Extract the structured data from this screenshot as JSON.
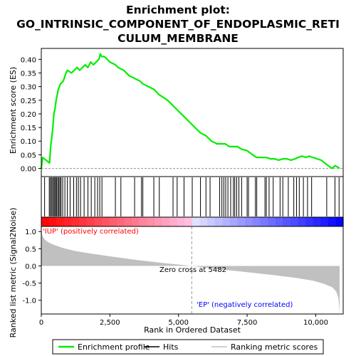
{
  "chart_data": {
    "type": "line",
    "title": "Enrichment plot:\nGO_INTRINSIC_COMPONENT_OF_ENDOPLASMIC_RETI\nCULUM_MEMBRANE",
    "title_lines": [
      "Enrichment plot:",
      "GO_INTRINSIC_COMPONENT_OF_ENDOPLASMIC_RETI",
      "CULUM_MEMBRANE"
    ],
    "xlabel": "Rank in Ordered Dataset",
    "xlim": [
      0,
      11000
    ],
    "x_ticks": [
      0,
      2500,
      5000,
      7500,
      10000
    ],
    "x_tick_labels": [
      "0",
      "2,500",
      "5,000",
      "7,500",
      "10,000"
    ],
    "es_panel": {
      "ylabel": "Enrichment score (ES)",
      "ylim": [
        -0.03,
        0.44
      ],
      "y_ticks": [
        0.0,
        0.05,
        0.1,
        0.15,
        0.2,
        0.25,
        0.3,
        0.35,
        0.4
      ],
      "y_tick_labels": [
        "0.00",
        "0.05",
        "0.10",
        "0.15",
        "0.20",
        "0.25",
        "0.30",
        "0.35",
        "0.40"
      ],
      "line_color": "#00ee00",
      "series": [
        {
          "name": "Enrichment profile",
          "x": [
            0,
            50,
            300,
            340,
            380,
            420,
            460,
            500,
            540,
            580,
            620,
            660,
            700,
            800,
            900,
            950,
            1100,
            1200,
            1300,
            1400,
            1500,
            1600,
            1700,
            1800,
            1900,
            2000,
            2100,
            2150,
            2200,
            2300,
            2500,
            2700,
            2800,
            3000,
            3200,
            3400,
            3600,
            3700,
            3900,
            4100,
            4300,
            4600,
            4800,
            5000,
            5200,
            5400,
            5600,
            5800,
            6000,
            6200,
            6400,
            6550,
            6700,
            6850,
            7000,
            7150,
            7300,
            7500,
            7700,
            7850,
            8000,
            8200,
            8350,
            8500,
            8650,
            8800,
            8950,
            9100,
            9250,
            9350,
            9500,
            9650,
            9750,
            9900,
            10050,
            10200,
            10450,
            10600,
            10700,
            10800,
            10870
          ],
          "y": [
            0.0,
            0.04,
            0.02,
            0.08,
            0.11,
            0.15,
            0.2,
            0.22,
            0.25,
            0.27,
            0.29,
            0.3,
            0.31,
            0.32,
            0.35,
            0.36,
            0.35,
            0.36,
            0.37,
            0.36,
            0.37,
            0.38,
            0.37,
            0.39,
            0.38,
            0.39,
            0.4,
            0.42,
            0.41,
            0.41,
            0.39,
            0.38,
            0.37,
            0.36,
            0.34,
            0.33,
            0.32,
            0.31,
            0.3,
            0.29,
            0.27,
            0.25,
            0.23,
            0.21,
            0.19,
            0.17,
            0.15,
            0.13,
            0.12,
            0.1,
            0.09,
            0.09,
            0.09,
            0.08,
            0.08,
            0.08,
            0.07,
            0.065,
            0.05,
            0.04,
            0.04,
            0.04,
            0.035,
            0.035,
            0.03,
            0.035,
            0.035,
            0.03,
            0.035,
            0.04,
            0.045,
            0.04,
            0.045,
            0.04,
            0.035,
            0.03,
            0.01,
            0.0,
            0.01,
            0.005,
            0.0
          ]
        }
      ]
    },
    "hits_panel": {
      "hit_ranks": [
        120,
        290,
        330,
        370,
        410,
        450,
        490,
        520,
        560,
        600,
        640,
        680,
        720,
        780,
        860,
        950,
        1050,
        1180,
        1280,
        1350,
        1430,
        1560,
        1700,
        1820,
        1950,
        2050,
        2130,
        2210,
        2700,
        2900,
        3400,
        3650,
        3700,
        4100,
        4300,
        4800,
        4950,
        5200,
        5500,
        5800,
        6000,
        6150,
        6500,
        6580,
        6650,
        6720,
        6800,
        6900,
        7000,
        7050,
        7120,
        7200,
        7300,
        7500,
        7550,
        7800,
        7850,
        8150,
        8200,
        8300,
        8450,
        8700,
        8800,
        9000,
        9200,
        9300,
        9400,
        9550,
        9700,
        9850,
        10400,
        10700,
        10850
      ]
    },
    "ranking_panel": {
      "ylabel": "Ranked list metric (Signal2Noise)",
      "ylim": [
        -1.4,
        1.15
      ],
      "y_ticks": [
        -1.0,
        -0.5,
        0.0,
        0.5,
        1.0
      ],
      "y_tick_labels": [
        "-1.0",
        "-0.5",
        "0.0",
        "0.5",
        "1.0"
      ],
      "fill_color": "#c0c0c0",
      "x": [
        0,
        50,
        150,
        300,
        500,
        800,
        1200,
        1800,
        2500,
        3500,
        4500,
        5482,
        6500,
        7500,
        8500,
        9300,
        9900,
        10300,
        10600,
        10750,
        10830,
        10870
      ],
      "y": [
        1.05,
        0.85,
        0.75,
        0.67,
        0.6,
        0.52,
        0.44,
        0.36,
        0.28,
        0.17,
        0.08,
        0.0,
        -0.1,
        -0.18,
        -0.27,
        -0.35,
        -0.43,
        -0.52,
        -0.62,
        -0.75,
        -0.95,
        -1.35
      ],
      "zero_cross_label": "Zero cross at 5482",
      "zero_cross_rank": 5482,
      "pos_label": "'IUP' (positively correlated)",
      "neg_label": "'EP' (negatively correlated)",
      "pos_label_color": "#ff0000",
      "neg_label_color": "#0000ff"
    },
    "legend": {
      "placement": "bottom",
      "entries": [
        {
          "label": "Enrichment profile",
          "color": "#00ee00",
          "kind": "line"
        },
        {
          "label": "Hits",
          "color": "#000000",
          "kind": "line"
        },
        {
          "label": "Ranking metric scores",
          "color": "#c0c0c0",
          "kind": "line"
        }
      ]
    },
    "grid": false
  }
}
